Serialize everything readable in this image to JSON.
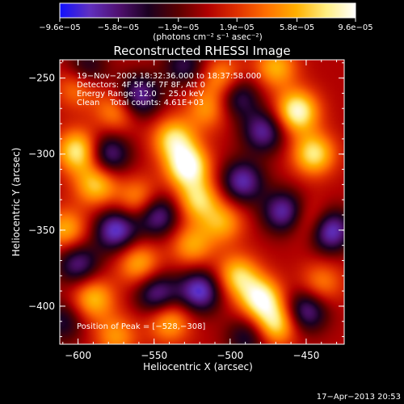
{
  "chart_data": {
    "type": "heatmap",
    "title": "Reconstructed RHESSI Image",
    "xlabel": "Heliocentric X (arcsec)",
    "ylabel": "Heliocentric Y (arcsec)",
    "xlim": [
      -612,
      -425
    ],
    "ylim": [
      -425,
      -238
    ],
    "x_ticks": [
      -600,
      -550,
      -500,
      -450
    ],
    "x_tick_labels": [
      "−600",
      "−550",
      "−500",
      "−450"
    ],
    "y_ticks": [
      -250,
      -300,
      -350,
      -400
    ],
    "y_tick_labels": [
      "−250",
      "−300",
      "−350",
      "−400"
    ],
    "colorbar": {
      "ticks": [
        -9.6e-05,
        -5.8e-05,
        -1.9e-05,
        1.9e-05,
        5.8e-05,
        9.6e-05
      ],
      "tick_labels": [
        "−9.6e−05",
        "−5.8e−05",
        "−1.9e−05",
        "1.9e−05",
        "5.8e−05",
        "9.6e−05"
      ],
      "range": [
        -9.6e-05,
        9.6e-05
      ],
      "unit_label": "(photons cm⁻² s⁻¹ asec⁻²)",
      "colors": [
        "#1010ff",
        "#6030c0",
        "#501070",
        "#1a0020",
        "#5a0000",
        "#b00000",
        "#e03000",
        "#ff7000",
        "#ffb000",
        "#ffee80",
        "#ffffff"
      ]
    },
    "annotations": [
      "19−Nov−2002 18:32:36.000 to 18:37:58.000",
      "Detectors: 4F 5F 6F 7F 8F, Att 0",
      "Energy Range: 12.0 − 25.0 keV",
      "Clean    Total counts: 4.61E+03"
    ],
    "peak_label": "Position of Peak = [−528,−308]",
    "peak": [
      -528,
      -308
    ],
    "sources": [
      {
        "x": -528,
        "y": -308,
        "strength": 1.0
      },
      {
        "x": -537,
        "y": -290,
        "strength": 0.75
      },
      {
        "x": -521,
        "y": -330,
        "strength": 0.7
      },
      {
        "x": -515,
        "y": -270,
        "strength": 0.5
      },
      {
        "x": -505,
        "y": -250,
        "strength": 0.55
      },
      {
        "x": -456,
        "y": -272,
        "strength": 0.95
      },
      {
        "x": -445,
        "y": -300,
        "strength": 0.8
      },
      {
        "x": -470,
        "y": -243,
        "strength": 0.6
      },
      {
        "x": -600,
        "y": -298,
        "strength": 0.85
      },
      {
        "x": -588,
        "y": -320,
        "strength": 0.7
      },
      {
        "x": -600,
        "y": -255,
        "strength": 0.55
      },
      {
        "x": -575,
        "y": -272,
        "strength": 0.5
      },
      {
        "x": -560,
        "y": -330,
        "strength": 0.55
      },
      {
        "x": -480,
        "y": -395,
        "strength": 0.9
      },
      {
        "x": -470,
        "y": -412,
        "strength": 0.8
      },
      {
        "x": -495,
        "y": -380,
        "strength": 0.7
      },
      {
        "x": -505,
        "y": -345,
        "strength": 0.55
      },
      {
        "x": -445,
        "y": -345,
        "strength": 0.5
      },
      {
        "x": -590,
        "y": -395,
        "strength": 0.65
      },
      {
        "x": -560,
        "y": -372,
        "strength": 0.6
      },
      {
        "x": -540,
        "y": -410,
        "strength": 0.6
      },
      {
        "x": -525,
        "y": -360,
        "strength": 0.55
      },
      {
        "x": -608,
        "y": -350,
        "strength": 0.6
      },
      {
        "x": -575,
        "y": -420,
        "strength": 0.5
      },
      {
        "x": -440,
        "y": -385,
        "strength": 0.45
      },
      {
        "x": -560,
        "y": -262,
        "strength": -0.75
      },
      {
        "x": -580,
        "y": -300,
        "strength": -0.7
      },
      {
        "x": -575,
        "y": -350,
        "strength": -0.85
      },
      {
        "x": -548,
        "y": -340,
        "strength": -0.75
      },
      {
        "x": -492,
        "y": -318,
        "strength": -0.75
      },
      {
        "x": -478,
        "y": -285,
        "strength": -0.7
      },
      {
        "x": -435,
        "y": -350,
        "strength": -1.0
      },
      {
        "x": -465,
        "y": -338,
        "strength": -0.75
      },
      {
        "x": -450,
        "y": -403,
        "strength": -0.7
      },
      {
        "x": -600,
        "y": -372,
        "strength": -0.65
      },
      {
        "x": -520,
        "y": -390,
        "strength": -0.85
      },
      {
        "x": -548,
        "y": -392,
        "strength": -0.7
      },
      {
        "x": -595,
        "y": -245,
        "strength": -0.55
      },
      {
        "x": -495,
        "y": -262,
        "strength": -0.6
      },
      {
        "x": -488,
        "y": -420,
        "strength": -0.5
      },
      {
        "x": -530,
        "y": -242,
        "strength": -0.5
      },
      {
        "x": -610,
        "y": -410,
        "strength": -0.45
      }
    ]
  },
  "footer": {
    "timestamp": "17−Apr−2013 20:53"
  }
}
